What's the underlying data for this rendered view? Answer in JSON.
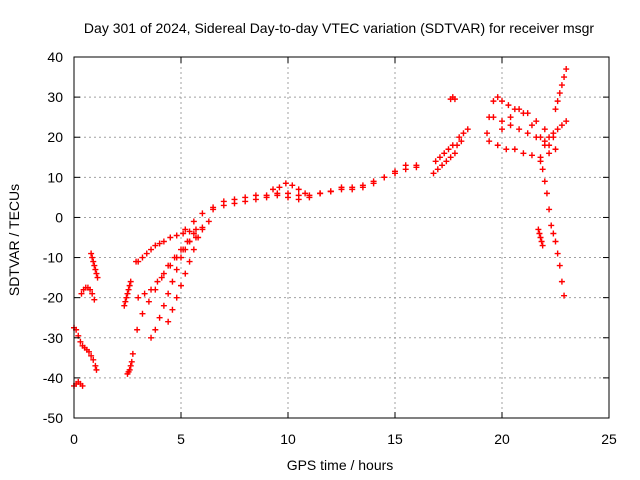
{
  "chart_data": {
    "type": "scatter",
    "title": "Day 301 of 2024, Sidereal Day-to-day VTEC variation (SDTVAR) for receiver msgr",
    "xlabel": "GPS time / hours",
    "ylabel": "SDTVAR / TECUs",
    "xlim": [
      0,
      25
    ],
    "ylim": [
      -50,
      40
    ],
    "x_ticks": [
      0,
      5,
      10,
      15,
      20,
      25
    ],
    "x_tick_labels": [
      "0",
      "5",
      "10",
      "15",
      "20",
      "25"
    ],
    "y_ticks": [
      -50,
      -40,
      -30,
      -20,
      -10,
      0,
      10,
      20,
      30,
      40
    ],
    "y_tick_labels": [
      "-50",
      "-40",
      "-30",
      "-20",
      "-10",
      "0",
      "10",
      "20",
      "30",
      "40"
    ],
    "grid": true,
    "legend": "none",
    "marker": "plus",
    "color": "#ff0000",
    "series": [
      {
        "name": "s1",
        "x": [
          0.0,
          0.1,
          0.2,
          0.3,
          0.4
        ],
        "y": [
          -42,
          -41.5,
          -41,
          -41.5,
          -42
        ]
      },
      {
        "name": "s2",
        "x": [
          0.0,
          0.1,
          0.2,
          0.3,
          0.4,
          0.5,
          0.6,
          0.7,
          0.8,
          0.9,
          1.0,
          1.05
        ],
        "y": [
          -27.5,
          -28,
          -29.5,
          -31,
          -32,
          -32.5,
          -33,
          -33.5,
          -34.5,
          -35.5,
          -37,
          -38
        ]
      },
      {
        "name": "s3",
        "x": [
          0.35,
          0.45,
          0.55,
          0.65,
          0.75,
          0.85,
          0.95
        ],
        "y": [
          -19,
          -18,
          -17.5,
          -17.5,
          -18,
          -19,
          -20.5
        ]
      },
      {
        "name": "s4",
        "x": [
          0.8,
          0.85,
          0.9,
          0.95,
          1.0,
          1.05,
          1.1
        ],
        "y": [
          -9,
          -10,
          -11,
          -12,
          -13,
          -14,
          -15
        ]
      },
      {
        "name": "s5",
        "x": [
          2.5,
          2.55,
          2.6,
          2.65,
          2.7,
          2.75
        ],
        "y": [
          -39,
          -38.5,
          -38,
          -37,
          -36,
          -34
        ]
      },
      {
        "name": "s6",
        "x": [
          2.35,
          2.4,
          2.45,
          2.5,
          2.55,
          2.6,
          2.65
        ],
        "y": [
          -22,
          -21,
          -20,
          -19,
          -18,
          -17,
          -16
        ]
      },
      {
        "name": "s7",
        "x": [
          2.9,
          3.0,
          3.2,
          3.4,
          3.6,
          3.8,
          4.0,
          4.2,
          4.5,
          4.8,
          5.1,
          5.4,
          5.7,
          6.0,
          6.3
        ],
        "y": [
          -11,
          -11,
          -10,
          -9,
          -8,
          -7,
          -6.5,
          -6,
          -5,
          -4.5,
          -4,
          -3.5,
          -3,
          -2.5,
          -1
        ]
      },
      {
        "name": "s8",
        "x": [
          2.95,
          3.2,
          3.5,
          3.8,
          4.1,
          4.4,
          4.7,
          5.0,
          5.3,
          5.6
        ],
        "y": [
          -28,
          -24,
          -21,
          -18,
          -15,
          -12,
          -10,
          -8,
          -6,
          -4
        ]
      },
      {
        "name": "s9",
        "x": [
          3.0,
          3.3,
          3.6,
          3.9,
          4.2,
          4.5,
          4.8,
          5.1,
          5.4,
          5.7
        ],
        "y": [
          -20,
          -19,
          -18,
          -16,
          -14,
          -12,
          -10,
          -8,
          -6,
          -5
        ]
      },
      {
        "name": "s10",
        "x": [
          3.6,
          3.8,
          4.0,
          4.2,
          4.4,
          4.6,
          4.8,
          5.0,
          5.2,
          5.4
        ],
        "y": [
          -30,
          -28,
          -25,
          -22,
          -19,
          -16,
          -13,
          -10,
          -8,
          -6
        ]
      },
      {
        "name": "s11",
        "x": [
          4.4,
          4.6,
          4.8,
          5.0,
          5.2,
          5.4,
          5.6,
          5.8,
          6.0
        ],
        "y": [
          -26,
          -23,
          -20,
          -17,
          -14,
          -11,
          -8,
          -5,
          -3
        ]
      },
      {
        "name": "s12",
        "x": [
          5.2,
          5.6,
          6.0,
          6.5,
          7.0,
          7.5,
          8.0,
          8.5,
          9.0,
          9.5,
          10.0,
          10.5,
          11.0,
          11.5,
          12.0
        ],
        "y": [
          -3,
          -1,
          1,
          2.5,
          4,
          4.5,
          5,
          5.5,
          5.5,
          6,
          6,
          5.5,
          5.5,
          6,
          6.5
        ]
      },
      {
        "name": "s13",
        "x": [
          6.5,
          7.0,
          7.5,
          8.0,
          8.5,
          9.0,
          9.5,
          10.0,
          10.5,
          11.0,
          11.5,
          12.0,
          12.5,
          13.0,
          13.5,
          14.0,
          14.5,
          15.0,
          15.5,
          16.0
        ],
        "y": [
          2,
          3,
          3.5,
          4,
          4.5,
          5,
          5.5,
          5,
          4.5,
          5,
          6,
          6.5,
          7,
          7,
          7.5,
          8.5,
          10,
          11,
          12,
          12.5
        ]
      },
      {
        "name": "s14",
        "x": [
          9.3,
          9.6,
          9.9,
          10.2,
          10.5,
          10.8
        ],
        "y": [
          7,
          7.5,
          8.5,
          8,
          7,
          6
        ]
      },
      {
        "name": "s15",
        "x": [
          12.0,
          12.5,
          13.0,
          13.5,
          14.0,
          14.5,
          15.0,
          15.5,
          16.0
        ],
        "y": [
          6.5,
          7.5,
          7.5,
          8,
          9,
          10,
          11.5,
          13,
          13
        ]
      },
      {
        "name": "s16",
        "x": [
          16.8,
          17.0,
          17.2,
          17.4,
          17.6,
          17.8
        ],
        "y": [
          11,
          12,
          13,
          14,
          15,
          16
        ]
      },
      {
        "name": "s17",
        "x": [
          16.9,
          17.1,
          17.3,
          17.5,
          17.7,
          17.9,
          18.1
        ],
        "y": [
          14,
          15,
          16,
          17,
          18,
          18,
          19
        ]
      },
      {
        "name": "s18",
        "x": [
          18.0,
          18.2,
          18.4
        ],
        "y": [
          20,
          21,
          22
        ]
      },
      {
        "name": "s19",
        "x": [
          17.6,
          17.7,
          17.8
        ],
        "y": [
          29.5,
          30,
          29.5
        ]
      },
      {
        "name": "s20",
        "x": [
          19.3,
          19.4,
          19.6,
          19.8,
          20.0,
          20.3,
          20.6,
          21.0,
          21.4,
          21.8,
          22.2,
          22.5
        ],
        "y": [
          21,
          25,
          29,
          30,
          29,
          28,
          27,
          26,
          23,
          20,
          18,
          17
        ]
      },
      {
        "name": "s21",
        "x": [
          19.6,
          20.0,
          20.4,
          20.8,
          21.2,
          21.6,
          22.0
        ],
        "y": [
          25,
          24,
          23,
          22,
          21,
          20,
          18
        ]
      },
      {
        "name": "s22",
        "x": [
          20.0,
          20.4,
          20.8,
          21.2,
          21.6,
          22.0,
          22.4
        ],
        "y": [
          22,
          25,
          27,
          26,
          24,
          22,
          20
        ]
      },
      {
        "name": "s23",
        "x": [
          19.4,
          19.8,
          20.2,
          20.6,
          21.0,
          21.4,
          21.8,
          22.2
        ],
        "y": [
          19,
          18,
          17,
          17,
          16,
          15.5,
          15,
          16
        ]
      },
      {
        "name": "s24",
        "x": [
          22.0,
          22.2,
          22.4,
          22.6,
          22.8,
          23.0
        ],
        "y": [
          19,
          20,
          21,
          22,
          23,
          24
        ]
      },
      {
        "name": "s25",
        "x": [
          22.5,
          22.6,
          22.7,
          22.8,
          22.9,
          23.0
        ],
        "y": [
          27,
          29,
          31,
          33,
          35,
          37
        ]
      },
      {
        "name": "s26",
        "x": [
          21.8,
          21.9,
          22.0,
          22.1,
          22.2,
          22.3,
          22.4,
          22.5,
          22.6,
          22.7,
          22.8,
          22.9
        ],
        "y": [
          14,
          12,
          9,
          6,
          2,
          -2,
          -4,
          -6,
          -9,
          -12,
          -16,
          -19.5
        ]
      },
      {
        "name": "s27",
        "x": [
          21.7,
          21.75,
          21.8,
          21.85,
          21.9
        ],
        "y": [
          -3,
          -4,
          -5,
          -6,
          -7
        ]
      }
    ]
  }
}
